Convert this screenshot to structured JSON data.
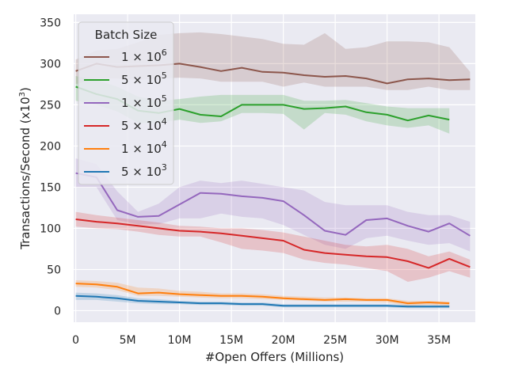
{
  "chart_data": {
    "type": "line",
    "xlabel": "#Open Offers (Millions)",
    "ylabel": "Transactions/Second (x10^3)",
    "xlim": [
      -0.2,
      38.5
    ],
    "ylim": [
      -14,
      360
    ],
    "xticks": [
      0,
      5,
      10,
      15,
      20,
      25,
      30,
      35
    ],
    "xtick_labels": [
      "0",
      "5M",
      "10M",
      "15M",
      "20M",
      "25M",
      "30M",
      "35M"
    ],
    "yticks": [
      0,
      50,
      100,
      150,
      200,
      250,
      300,
      350
    ],
    "ytick_labels": [
      "0",
      "50",
      "100",
      "150",
      "200",
      "250",
      "300",
      "350"
    ],
    "grid": true,
    "legend": {
      "title": "Batch Size",
      "position": "top-left",
      "entries": [
        {
          "mantissa": "1",
          "exponent": "6",
          "color": "#8c564b"
        },
        {
          "mantissa": "5",
          "exponent": "5",
          "color": "#2ca02c"
        },
        {
          "mantissa": "1",
          "exponent": "5",
          "color": "#9467bd"
        },
        {
          "mantissa": "5",
          "exponent": "4",
          "color": "#d62728"
        },
        {
          "mantissa": "1",
          "exponent": "4",
          "color": "#ff7f0e"
        },
        {
          "mantissa": "5",
          "exponent": "3",
          "color": "#1f77b4"
        }
      ]
    },
    "series": [
      {
        "name": "1e6",
        "color": "#8c564b",
        "x": [
          0,
          2,
          4,
          6,
          8,
          10,
          12,
          14,
          16,
          18,
          20,
          22,
          24,
          26,
          28,
          30,
          32,
          34,
          36,
          38
        ],
        "values": [
          291,
          300,
          296,
          297,
          298,
          300,
          296,
          291,
          295,
          290,
          289,
          286,
          284,
          285,
          282,
          276,
          281,
          282,
          280,
          281
        ],
        "lower": [
          275,
          282,
          282,
          280,
          282,
          283,
          282,
          278,
          278,
          278,
          272,
          277,
          272,
          272,
          272,
          268,
          268,
          272,
          268,
          268
        ],
        "upper": [
          305,
          316,
          318,
          326,
          335,
          337,
          338,
          336,
          333,
          330,
          324,
          323,
          337,
          318,
          320,
          327,
          327,
          326,
          320,
          290
        ]
      },
      {
        "name": "5e5",
        "color": "#2ca02c",
        "x": [
          0,
          2,
          4,
          6,
          8,
          10,
          12,
          14,
          16,
          18,
          20,
          22,
          24,
          26,
          28,
          30,
          32,
          34,
          36
        ],
        "values": [
          272,
          263,
          257,
          243,
          240,
          245,
          238,
          236,
          250,
          250,
          250,
          245,
          246,
          248,
          241,
          238,
          231,
          237,
          232
        ],
        "lower": [
          255,
          250,
          242,
          228,
          228,
          232,
          228,
          230,
          240,
          240,
          239,
          220,
          240,
          238,
          230,
          225,
          222,
          225,
          215
        ],
        "upper": [
          285,
          280,
          272,
          260,
          255,
          257,
          260,
          262,
          262,
          262,
          262,
          255,
          255,
          256,
          252,
          248,
          246,
          246,
          246
        ]
      },
      {
        "name": "1e5",
        "color": "#9467bd",
        "x": [
          0,
          2,
          4,
          6,
          8,
          10,
          12,
          14,
          16,
          18,
          20,
          22,
          24,
          26,
          28,
          30,
          32,
          34,
          36,
          38
        ],
        "values": [
          167,
          162,
          122,
          114,
          115,
          129,
          143,
          142,
          139,
          137,
          133,
          116,
          97,
          92,
          110,
          112,
          103,
          96,
          106,
          91
        ],
        "lower": [
          150,
          150,
          110,
          105,
          105,
          112,
          112,
          118,
          114,
          112,
          104,
          92,
          80,
          75,
          88,
          91,
          85,
          80,
          82,
          72
        ],
        "upper": [
          185,
          178,
          145,
          120,
          130,
          150,
          158,
          155,
          158,
          154,
          150,
          146,
          132,
          128,
          128,
          128,
          120,
          116,
          116,
          108
        ]
      },
      {
        "name": "5e4",
        "color": "#d62728",
        "x": [
          0,
          2,
          4,
          6,
          8,
          10,
          12,
          14,
          16,
          18,
          20,
          22,
          24,
          26,
          28,
          30,
          32,
          34,
          36,
          38
        ],
        "values": [
          111,
          108,
          106,
          103,
          100,
          97,
          96,
          94,
          91,
          88,
          85,
          74,
          70,
          68,
          66,
          65,
          60,
          52,
          63,
          53
        ],
        "lower": [
          102,
          100,
          99,
          96,
          92,
          90,
          90,
          83,
          75,
          73,
          70,
          62,
          58,
          56,
          52,
          48,
          35,
          40,
          48,
          40
        ],
        "upper": [
          120,
          116,
          113,
          110,
          107,
          103,
          102,
          100,
          100,
          98,
          95,
          90,
          85,
          80,
          78,
          80,
          75,
          66,
          72,
          62
        ]
      },
      {
        "name": "1e4",
        "color": "#ff7f0e",
        "x": [
          0,
          2,
          4,
          6,
          8,
          10,
          12,
          14,
          16,
          18,
          20,
          22,
          24,
          26,
          28,
          30,
          32,
          34,
          36
        ],
        "values": [
          33,
          32,
          29,
          21,
          22,
          20,
          19,
          18,
          18,
          17,
          15,
          14,
          13,
          14,
          13,
          13,
          9,
          10,
          9
        ],
        "lower": [
          29,
          28,
          25,
          18,
          18,
          17,
          16,
          15,
          15,
          14,
          13,
          12,
          11,
          11,
          11,
          10,
          6,
          7,
          6
        ],
        "upper": [
          37,
          36,
          34,
          28,
          27,
          24,
          23,
          21,
          21,
          20,
          18,
          17,
          16,
          16,
          15,
          15,
          12,
          12,
          11
        ]
      },
      {
        "name": "5e3",
        "color": "#1f77b4",
        "x": [
          0,
          2,
          4,
          6,
          8,
          10,
          12,
          14,
          16,
          18,
          20,
          22,
          24,
          26,
          28,
          30,
          32,
          34,
          36
        ],
        "values": [
          18,
          17,
          15,
          12,
          11,
          10,
          9,
          9,
          8,
          8,
          6,
          6,
          6,
          6,
          6,
          6,
          5,
          5,
          5
        ],
        "lower": [
          13,
          13,
          11,
          9,
          8,
          8,
          7,
          7,
          6,
          6,
          4,
          4,
          4,
          4,
          4,
          4,
          3,
          3,
          3
        ],
        "upper": [
          22,
          21,
          19,
          15,
          14,
          12,
          11,
          11,
          10,
          10,
          8,
          8,
          8,
          8,
          8,
          8,
          7,
          7,
          7
        ]
      }
    ]
  }
}
